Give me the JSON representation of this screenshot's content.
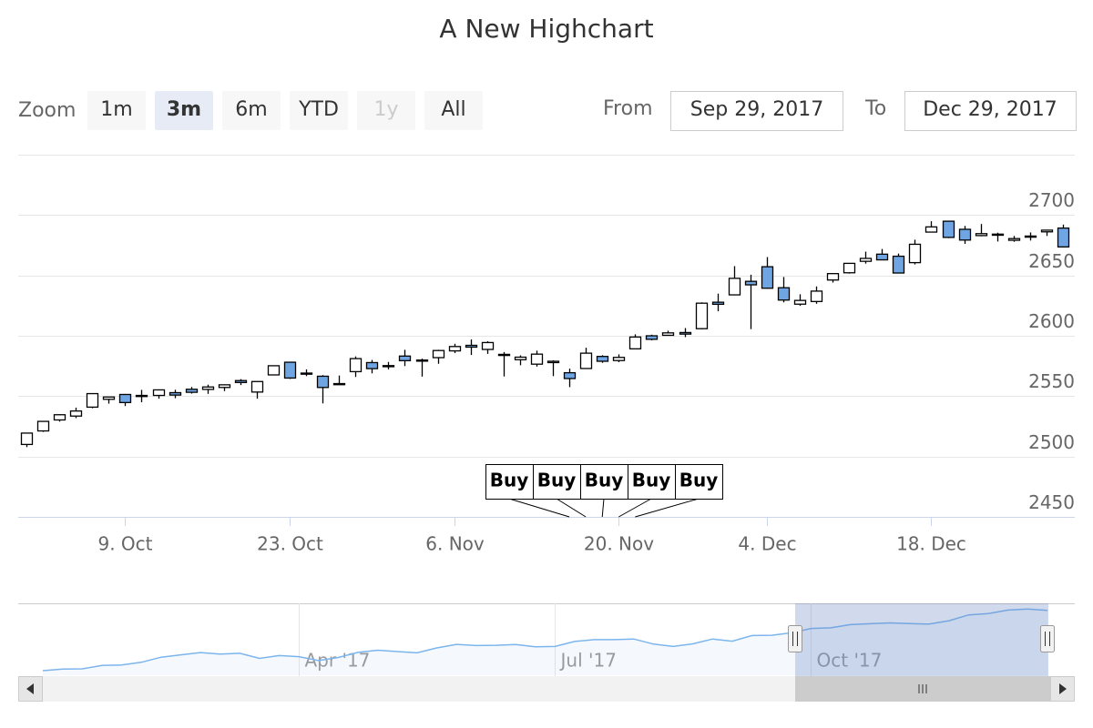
{
  "chart_data": {
    "type": "candlestick",
    "title": "A New Highchart",
    "range_selector": {
      "label": "Zoom",
      "buttons": [
        "1m",
        "3m",
        "6m",
        "YTD",
        "1y",
        "All"
      ],
      "selected": 1,
      "disabled": [
        4
      ],
      "from_label": "From",
      "from": "Sep 29, 2017",
      "to_label": "To",
      "to": "Dec 29, 2017"
    },
    "x": [
      "2017-09-29",
      "2017-10-02",
      "2017-10-03",
      "2017-10-04",
      "2017-10-05",
      "2017-10-06",
      "2017-10-09",
      "2017-10-10",
      "2017-10-11",
      "2017-10-12",
      "2017-10-13",
      "2017-10-16",
      "2017-10-17",
      "2017-10-18",
      "2017-10-19",
      "2017-10-20",
      "2017-10-23",
      "2017-10-24",
      "2017-10-25",
      "2017-10-26",
      "2017-10-27",
      "2017-10-30",
      "2017-10-31",
      "2017-11-01",
      "2017-11-02",
      "2017-11-03",
      "2017-11-06",
      "2017-11-07",
      "2017-11-08",
      "2017-11-09",
      "2017-11-10",
      "2017-11-13",
      "2017-11-14",
      "2017-11-15",
      "2017-11-16",
      "2017-11-17",
      "2017-11-20",
      "2017-11-21",
      "2017-11-22",
      "2017-11-24",
      "2017-11-27",
      "2017-11-28",
      "2017-11-29",
      "2017-11-30",
      "2017-12-01",
      "2017-12-04",
      "2017-12-05",
      "2017-12-06",
      "2017-12-07",
      "2017-12-08",
      "2017-12-11",
      "2017-12-12",
      "2017-12-13",
      "2017-12-14",
      "2017-12-15",
      "2017-12-18",
      "2017-12-19",
      "2017-12-20",
      "2017-12-21",
      "2017-12-22",
      "2017-12-26",
      "2017-12-27",
      "2017-12-28",
      "2017-12-29"
    ],
    "open": [
      2510.0,
      2521.2,
      2530.3,
      2533.5,
      2540.9,
      2547.4,
      2551.4,
      2549.9,
      2550.6,
      2552.9,
      2555.7,
      2555.6,
      2557.2,
      2562.9,
      2553.4,
      2567.6,
      2578.1,
      2568.7,
      2566.5,
      2560.1,
      2570.3,
      2577.8,
      2575.0,
      2583.2,
      2579.5,
      2581.9,
      2587.5,
      2592.1,
      2588.7,
      2584.0,
      2580.2,
      2576.5,
      2577.8,
      2569.4,
      2572.9,
      2582.9,
      2579.5,
      2589.2,
      2600.0,
      2600.4,
      2602.7,
      2605.9,
      2627.8,
      2633.9,
      2645.1,
      2657.2,
      2639.8,
      2626.2,
      2628.4,
      2646.2,
      2652.2,
      2661.7,
      2667.6,
      2665.9,
      2660.6,
      2685.9,
      2694.9,
      2688.2,
      2683.0,
      2684.2,
      2679.1,
      2682.1,
      2686.1,
      2689.2
    ],
    "high": [
      2519.4,
      2529.2,
      2535.1,
      2540.5,
      2552.5,
      2549.4,
      2551.8,
      2555.2,
      2555.2,
      2555.3,
      2557.6,
      2559.5,
      2559.7,
      2564.1,
      2562.4,
      2575.4,
      2578.3,
      2572.2,
      2567.4,
      2567.1,
      2582.9,
      2580.0,
      2578.3,
      2588.4,
      2581.1,
      2588.4,
      2593.4,
      2597.0,
      2595.5,
      2586.5,
      2583.8,
      2587.7,
      2579.7,
      2572.8,
      2590.1,
      2583.9,
      2584.6,
      2601.2,
      2600.9,
      2604.2,
      2606.4,
      2627.7,
      2634.9,
      2657.7,
      2650.6,
      2665.2,
      2648.7,
      2634.4,
      2640.9,
      2651.7,
      2660.3,
      2669.7,
      2671.9,
      2668.1,
      2679.6,
      2694.9,
      2695.0,
      2691.0,
      2692.6,
      2685.4,
      2682.7,
      2685.6,
      2687.7,
      2692.1
    ],
    "low": [
      2507.8,
      2520.4,
      2528.9,
      2531.8,
      2540.0,
      2543.8,
      2541.8,
      2544.9,
      2547.9,
      2548.3,
      2552.1,
      2551.9,
      2554.2,
      2559.2,
      2547.9,
      2567.6,
      2564.3,
      2566.6,
      2544.0,
      2559.5,
      2565.9,
      2568.9,
      2572.2,
      2574.9,
      2566.2,
      2576.8,
      2585.7,
      2584.1,
      2585.0,
      2566.3,
      2575.6,
      2574.5,
      2566.6,
      2557.5,
      2572.9,
      2577.6,
      2578.2,
      2589.2,
      2596.2,
      2600.4,
      2598.9,
      2605.4,
      2620.3,
      2633.9,
      2605.5,
      2639.0,
      2627.7,
      2624.8,
      2626.5,
      2644.1,
      2651.5,
      2659.8,
      2662.9,
      2652.0,
      2659.1,
      2685.9,
      2680.9,
      2676.1,
      2682.4,
      2678.1,
      2677.9,
      2678.9,
      2682.7,
      2673.6
    ],
    "close": [
      2519.4,
      2529.1,
      2534.6,
      2537.7,
      2552.1,
      2549.3,
      2544.7,
      2550.6,
      2555.2,
      2550.9,
      2553.2,
      2557.6,
      2559.4,
      2561.3,
      2562.1,
      2575.2,
      2565.0,
      2569.1,
      2557.2,
      2560.4,
      2581.1,
      2572.8,
      2575.3,
      2579.4,
      2579.9,
      2587.8,
      2591.1,
      2590.6,
      2594.4,
      2584.6,
      2582.3,
      2584.8,
      2578.9,
      2564.6,
      2585.6,
      2578.9,
      2582.1,
      2599.0,
      2597.1,
      2602.4,
      2601.4,
      2627.0,
      2626.1,
      2647.6,
      2642.2,
      2639.4,
      2629.6,
      2629.3,
      2637.0,
      2651.5,
      2660.0,
      2664.1,
      2662.9,
      2652.0,
      2675.8,
      2690.2,
      2681.5,
      2679.3,
      2684.6,
      2683.3,
      2680.5,
      2682.6,
      2687.5,
      2673.6
    ],
    "color": "#6ea5e2",
    "up_color": "#ffffff",
    "line_color": "#000000",
    "ylim": [
      2450,
      2750
    ],
    "yticks": [
      2450,
      2500,
      2550,
      2600,
      2650,
      2700
    ],
    "grid": true,
    "xticks": [
      {
        "value": "2017-10-09",
        "label": "9. Oct"
      },
      {
        "value": "2017-10-23",
        "label": "23. Oct"
      },
      {
        "value": "2017-11-06",
        "label": "6. Nov"
      },
      {
        "value": "2017-11-20",
        "label": "20. Nov"
      },
      {
        "value": "2017-12-04",
        "label": "4. Dec"
      },
      {
        "value": "2017-12-18",
        "label": "18. Dec"
      }
    ],
    "flags": {
      "x": [
        "2017-11-15",
        "2017-11-16",
        "2017-11-17",
        "2017-11-20",
        "2017-11-21"
      ],
      "titles": [
        "Buy",
        "Buy",
        "Buy",
        "Buy",
        "Buy"
      ]
    },
    "navigator": {
      "color": "#7cb5ec",
      "x": [
        "2017-01-02",
        "2017-01-09",
        "2017-01-16",
        "2017-01-23",
        "2017-01-30",
        "2017-02-06",
        "2017-02-13",
        "2017-02-20",
        "2017-02-27",
        "2017-03-06",
        "2017-03-13",
        "2017-03-20",
        "2017-03-27",
        "2017-04-03",
        "2017-04-10",
        "2017-04-17",
        "2017-04-24",
        "2017-05-01",
        "2017-05-08",
        "2017-05-15",
        "2017-05-22",
        "2017-05-29",
        "2017-06-05",
        "2017-06-12",
        "2017-06-19",
        "2017-06-26",
        "2017-07-03",
        "2017-07-10",
        "2017-07-17",
        "2017-07-24",
        "2017-07-31",
        "2017-08-07",
        "2017-08-14",
        "2017-08-21",
        "2017-08-28",
        "2017-09-04",
        "2017-09-11",
        "2017-09-18",
        "2017-09-25",
        "2017-10-02",
        "2017-10-09",
        "2017-10-16",
        "2017-10-23",
        "2017-10-30",
        "2017-11-06",
        "2017-11-13",
        "2017-11-20",
        "2017-11-27",
        "2017-12-04",
        "2017-12-11",
        "2017-12-18",
        "2017-12-25"
      ],
      "values": [
        2258,
        2269,
        2271,
        2294,
        2297,
        2316,
        2351,
        2367,
        2383,
        2373,
        2378,
        2343,
        2362,
        2355,
        2328,
        2349,
        2384,
        2399,
        2390,
        2381,
        2415,
        2439,
        2431,
        2433,
        2438,
        2423,
        2425,
        2459,
        2472,
        2472,
        2476,
        2441,
        2425,
        2443,
        2476,
        2461,
        2500,
        2502,
        2519,
        2549,
        2553,
        2575,
        2581,
        2587,
        2582,
        2579,
        2602,
        2642,
        2651,
        2675,
        2683,
        2673
      ],
      "ylim": [
        2227,
        2709
      ],
      "xticks": [
        {
          "value": "2017-04-03",
          "label": "Apr '17"
        },
        {
          "value": "2017-07-03",
          "label": "Jul '17"
        },
        {
          "value": "2017-10-02",
          "label": "Oct '17"
        }
      ]
    }
  }
}
